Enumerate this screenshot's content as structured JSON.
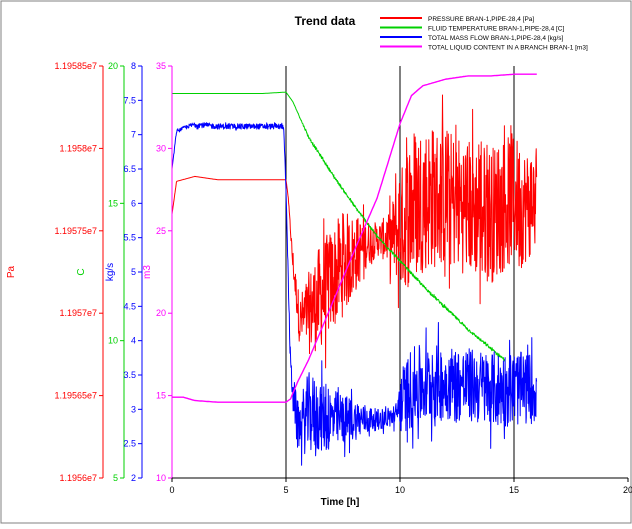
{
  "chart_data": {
    "type": "line",
    "title": "Trend data",
    "xlabel": "Time [h]",
    "xlim": [
      0,
      20
    ],
    "x_ticks": [
      "0",
      "5",
      "10",
      "15",
      "20"
    ],
    "vertical_gridlines_at": [
      5,
      10,
      15
    ],
    "legend_position": "top-right",
    "axes": [
      {
        "id": "pa",
        "label": "Pa",
        "color": "#ff0000",
        "range": [
          11956000,
          11958500
        ],
        "ticks": [
          "1.19585e7",
          "1.1958e7",
          "1.19575e7",
          "1.1957e7",
          "1.19565e7",
          "1.1956e7"
        ]
      },
      {
        "id": "c",
        "label": "C",
        "color": "#00d000",
        "range": [
          5,
          20
        ],
        "ticks": [
          "20",
          "15",
          "10",
          "5"
        ]
      },
      {
        "id": "kgs",
        "label": "kg/s",
        "color": "#0000ff",
        "range": [
          2,
          8
        ],
        "ticks": [
          "8",
          "7.5",
          "7",
          "6.5",
          "6",
          "5.5",
          "5",
          "4.5",
          "4",
          "3.5",
          "3",
          "2.5",
          "2"
        ]
      },
      {
        "id": "m3",
        "label": "m3",
        "color": "#ff00ff",
        "range": [
          10,
          35
        ],
        "ticks": [
          "35",
          "30",
          "25",
          "20",
          "15",
          "10"
        ]
      }
    ],
    "series": [
      {
        "name": "PRESSURE BRAN-1,PIPE-28,4 [Pa]",
        "axis": "pa",
        "color": "#ff0000",
        "x": [
          0,
          0.2,
          1,
          2,
          3,
          4,
          5,
          5.1,
          5.3,
          5.6,
          6,
          6.5,
          7,
          7.5,
          8,
          8.5,
          9,
          9.5,
          10,
          10.5,
          11,
          12,
          13,
          14,
          15,
          15.5,
          16
        ],
        "y": [
          11957600,
          11957800,
          11957830,
          11957810,
          11957810,
          11957810,
          11957810,
          11957700,
          11957300,
          11956950,
          11957000,
          11957100,
          11957200,
          11957300,
          11957350,
          11957420,
          11957450,
          11957450,
          11957500,
          11957650,
          11957700,
          11957700,
          11957650,
          11957600,
          11957700,
          11957650,
          11957700
        ],
        "noise": [
          0,
          0,
          0,
          0,
          0,
          0,
          0,
          0,
          60,
          150,
          250,
          320,
          320,
          320,
          250,
          150,
          100,
          150,
          350,
          500,
          450,
          420,
          420,
          420,
          400,
          350,
          300
        ]
      },
      {
        "name": "FLUID TEMPERATURE BRAN-1,PIPE-28,4 [C]",
        "axis": "c",
        "color": "#00d000",
        "x": [
          0,
          1,
          2,
          3,
          4,
          5,
          5.3,
          6,
          7,
          8,
          9,
          10,
          11,
          12,
          13,
          14,
          14.6
        ],
        "y": [
          19.0,
          19.0,
          19.0,
          19.0,
          19.0,
          19.05,
          18.7,
          17.4,
          16.1,
          14.9,
          13.8,
          12.9,
          12.0,
          11.2,
          10.4,
          9.7,
          9.3
        ],
        "noise": [
          0,
          0,
          0,
          0,
          0,
          0,
          0,
          0.05,
          0.05,
          0.05,
          0.05,
          0.05,
          0.05,
          0.05,
          0.05,
          0.05,
          0.05
        ]
      },
      {
        "name": "TOTAL MASS FLOW BRAN-1,PIPE-28,4 [kg/s]",
        "axis": "kgs",
        "color": "#0000ff",
        "x": [
          0,
          0.2,
          0.5,
          1,
          2,
          3,
          4,
          4.9,
          5,
          5.2,
          5.5,
          5.8,
          6,
          7,
          8,
          9,
          9.8,
          10,
          10.5,
          11,
          12,
          13,
          14,
          15,
          16
        ],
        "y": [
          6.5,
          7.05,
          7.1,
          7.15,
          7.12,
          7.12,
          7.12,
          7.12,
          6.2,
          3.6,
          2.75,
          2.85,
          2.95,
          2.85,
          2.85,
          2.85,
          2.9,
          3.1,
          3.3,
          3.35,
          3.4,
          3.35,
          3.3,
          3.3,
          3.3
        ],
        "noise": [
          0,
          0.02,
          0.02,
          0.04,
          0.04,
          0.04,
          0.04,
          0.04,
          0,
          0.2,
          0.35,
          0.5,
          0.6,
          0.45,
          0.3,
          0.15,
          0.15,
          0.45,
          0.6,
          0.6,
          0.55,
          0.55,
          0.55,
          0.55,
          0.5
        ]
      },
      {
        "name": "TOTAL LIQUID CONTENT IN A BRANCH BRAN-1 [m3]",
        "axis": "m3",
        "color": "#ff00ff",
        "x": [
          0,
          0.5,
          1,
          2,
          3,
          4,
          5,
          5.2,
          5.5,
          6,
          7,
          8,
          9,
          10,
          10.5,
          11,
          12,
          13,
          14,
          15,
          16
        ],
        "y": [
          14.9,
          14.9,
          14.7,
          14.6,
          14.6,
          14.6,
          14.6,
          14.8,
          15.8,
          17.2,
          20.5,
          23.8,
          27.0,
          31.5,
          33.2,
          33.8,
          34.2,
          34.4,
          34.4,
          34.5,
          34.5
        ],
        "noise": [
          0,
          0,
          0,
          0,
          0,
          0,
          0,
          0,
          0,
          0,
          0,
          0,
          0,
          0,
          0,
          0,
          0,
          0,
          0,
          0,
          0
        ]
      }
    ]
  }
}
